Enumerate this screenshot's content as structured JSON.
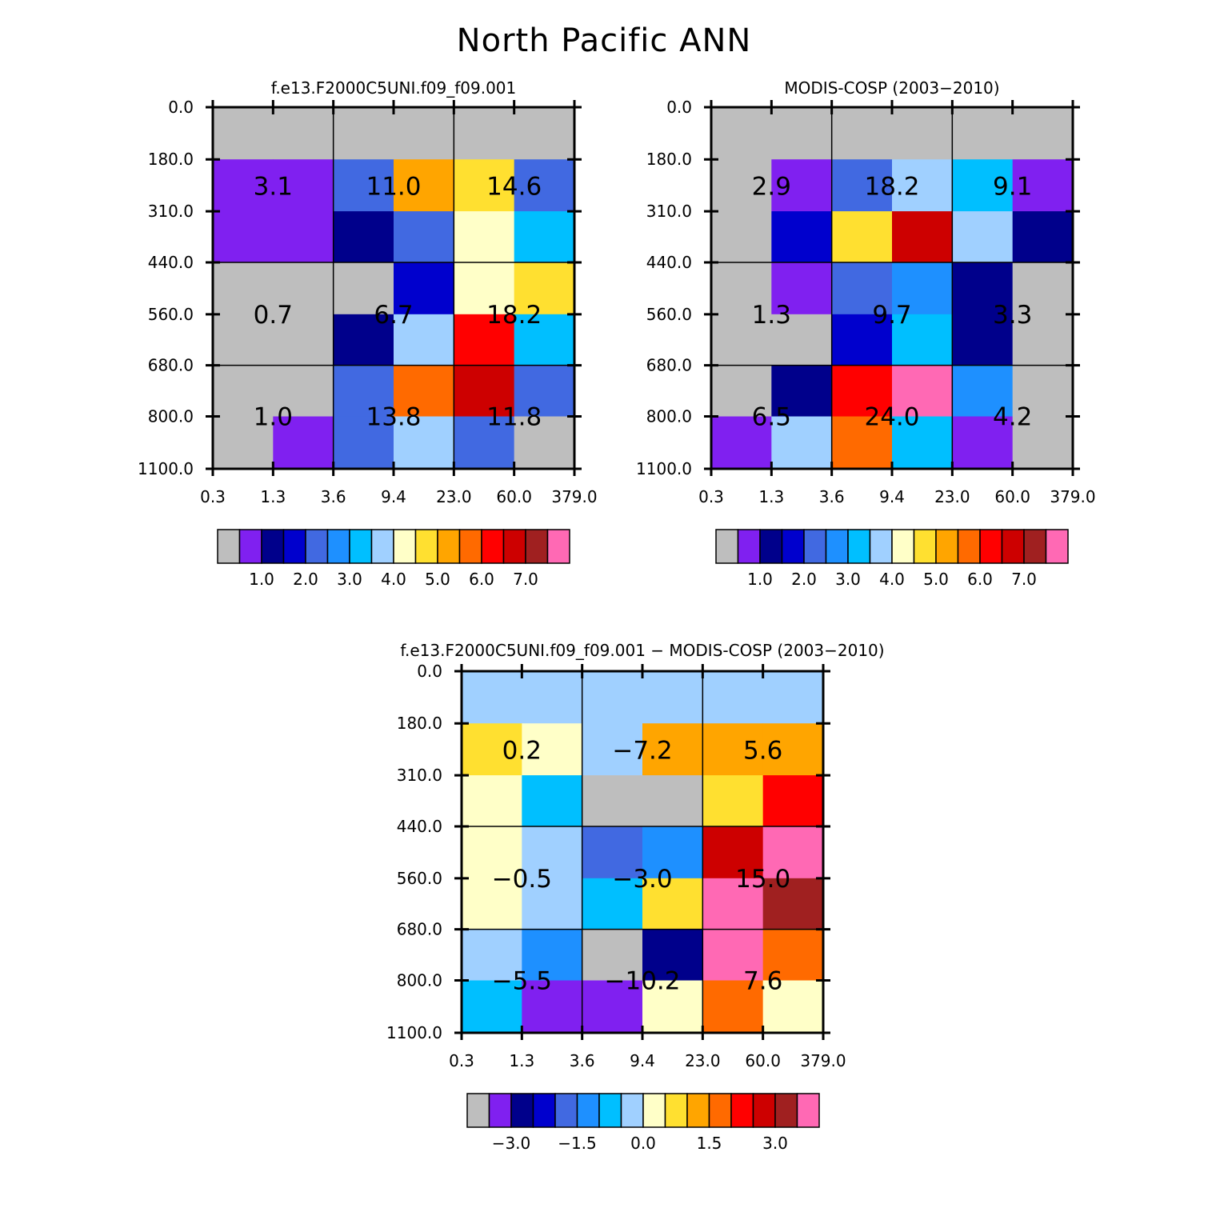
{
  "title": "North Pacific ANN",
  "chart_data": [
    {
      "type": "heatmap",
      "title": "f.e13.F2000C5UNI.f09_f09.001",
      "x_ticks": [
        "0.3",
        "1.3",
        "3.6",
        "9.4",
        "23.0",
        "60.0",
        "379.0"
      ],
      "y_ticks": [
        "0.0",
        "180.0",
        "310.0",
        "440.0",
        "560.0",
        "680.0",
        "800.0",
        "1100.0"
      ],
      "cells": [
        [
          "grey",
          "grey",
          "grey",
          "grey",
          "grey",
          "grey"
        ],
        [
          "purple",
          "purple",
          "royalblue",
          "orange",
          "gold",
          "royalblue"
        ],
        [
          "purple",
          "purple",
          "navy",
          "royalblue",
          "lightyellow",
          "deepskyblue"
        ],
        [
          "grey",
          "grey",
          "grey",
          "blue",
          "lightyellow",
          "gold"
        ],
        [
          "grey",
          "grey",
          "navy",
          "lightblue",
          "red",
          "deepskyblue"
        ],
        [
          "grey",
          "grey",
          "royalblue",
          "darkorange",
          "crimson",
          "royalblue"
        ],
        [
          "grey",
          "purple",
          "royalblue",
          "lightblue",
          "royalblue",
          "grey"
        ]
      ],
      "block_values": [
        [
          "3.1",
          "11.0",
          "14.6"
        ],
        [
          "0.7",
          "6.7",
          "18.2"
        ],
        [
          "1.0",
          "13.8",
          "11.8"
        ]
      ],
      "colorbar": {
        "labels": [
          "1.0",
          "2.0",
          "3.0",
          "4.0",
          "5.0",
          "6.0",
          "7.0"
        ]
      }
    },
    {
      "type": "heatmap",
      "title": "MODIS-COSP (2003-2010)",
      "x_ticks": [
        "0.3",
        "1.3",
        "3.6",
        "9.4",
        "23.0",
        "60.0",
        "379.0"
      ],
      "y_ticks": [
        "0.0",
        "180.0",
        "310.0",
        "440.0",
        "560.0",
        "680.0",
        "800.0",
        "1100.0"
      ],
      "cells": [
        [
          "grey",
          "grey",
          "grey",
          "grey",
          "grey",
          "grey"
        ],
        [
          "grey",
          "purple",
          "royalblue",
          "lightblue",
          "deepskyblue",
          "purple"
        ],
        [
          "grey",
          "blue",
          "gold",
          "crimson",
          "lightblue",
          "navy"
        ],
        [
          "grey",
          "purple",
          "royalblue",
          "dodgerblue",
          "navy",
          "grey"
        ],
        [
          "grey",
          "grey",
          "blue",
          "deepskyblue",
          "navy",
          "grey"
        ],
        [
          "grey",
          "navy",
          "red",
          "hotpink",
          "dodgerblue",
          "grey"
        ],
        [
          "purple",
          "lightblue",
          "darkorange",
          "deepskyblue",
          "purple",
          "grey"
        ]
      ],
      "block_values": [
        [
          "2.9",
          "18.2",
          "9.1"
        ],
        [
          "1.3",
          "9.7",
          "3.3"
        ],
        [
          "6.5",
          "24.0",
          "4.2"
        ]
      ],
      "colorbar": {
        "labels": [
          "1.0",
          "2.0",
          "3.0",
          "4.0",
          "5.0",
          "6.0",
          "7.0"
        ]
      }
    },
    {
      "type": "heatmap",
      "title": "f.e13.F2000C5UNI.f09_f09.001 - MODIS-COSP (2003-2010)",
      "x_ticks": [
        "0.3",
        "1.3",
        "3.6",
        "9.4",
        "23.0",
        "60.0",
        "379.0"
      ],
      "y_ticks": [
        "0.0",
        "180.0",
        "310.0",
        "440.0",
        "560.0",
        "680.0",
        "800.0",
        "1100.0"
      ],
      "cells": [
        [
          "lightblue",
          "lightblue",
          "lightblue",
          "lightblue",
          "lightblue",
          "lightblue"
        ],
        [
          "gold",
          "lightyellow",
          "lightblue",
          "orange",
          "orange",
          "orange"
        ],
        [
          "lightyellow",
          "deepskyblue",
          "grey",
          "grey",
          "gold",
          "red"
        ],
        [
          "lightyellow",
          "lightblue",
          "royalblue",
          "dodgerblue",
          "crimson",
          "hotpink"
        ],
        [
          "lightyellow",
          "lightblue",
          "deepskyblue",
          "gold",
          "hotpink",
          "brown"
        ],
        [
          "lightblue",
          "dodgerblue",
          "grey",
          "navy",
          "hotpink",
          "darkorange"
        ],
        [
          "deepskyblue",
          "purple",
          "purple",
          "lightyellow",
          "darkorange",
          "lightyellow"
        ]
      ],
      "block_values": [
        [
          "0.2",
          "-7.2",
          "5.6"
        ],
        [
          "-0.5",
          "-3.0",
          "15.0"
        ],
        [
          "-5.5",
          "-10.2",
          "7.6"
        ]
      ],
      "colorbar": {
        "labels": [
          "-3.0",
          "-1.5",
          "0.0",
          "1.5",
          "3.0"
        ]
      }
    }
  ],
  "colors": {
    "grey": "#bebebe",
    "purple": "#8020f0",
    "navy": "#00008b",
    "blue": "#0000cd",
    "royalblue": "#4169e1",
    "dodgerblue": "#1e90ff",
    "deepskyblue": "#00bfff",
    "lightblue": "#a0d0ff",
    "lightyellow": "#ffffc8",
    "gold": "#ffe030",
    "orange": "#ffa500",
    "darkorange": "#ff6a00",
    "red": "#ff0000",
    "crimson": "#cd0000",
    "brown": "#a02020",
    "hotpink": "#ff69b4"
  },
  "colorbar_colors": [
    "grey",
    "purple",
    "navy",
    "blue",
    "royalblue",
    "dodgerblue",
    "deepskyblue",
    "lightblue",
    "lightyellow",
    "gold",
    "orange",
    "darkorange",
    "red",
    "crimson",
    "brown",
    "hotpink"
  ]
}
